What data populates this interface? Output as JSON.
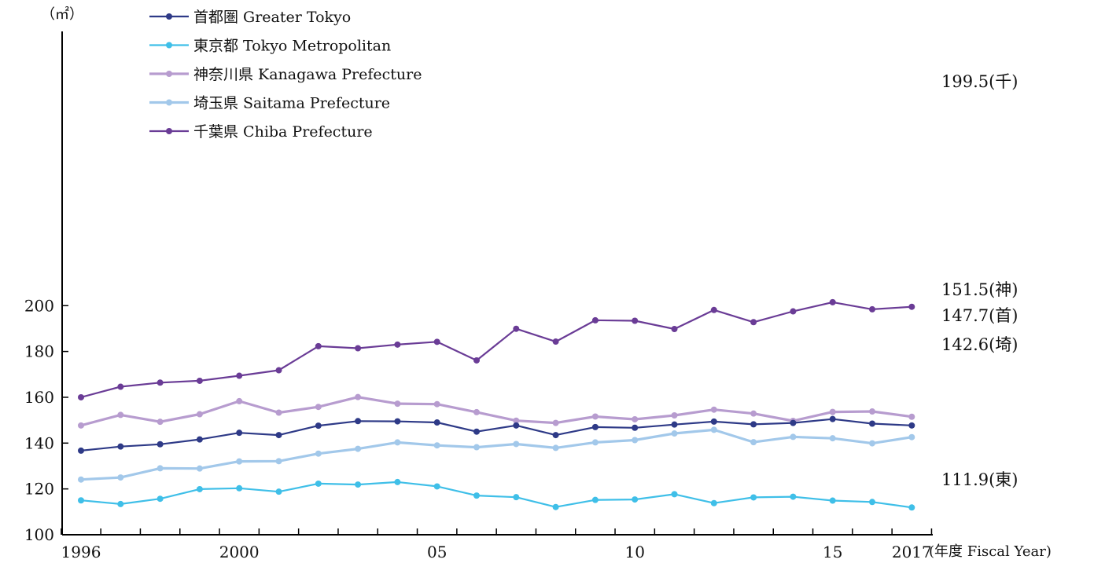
{
  "chart_data": {
    "type": "line",
    "y_unit": "（㎡）",
    "x_unit": "(年度 Fiscal Year)",
    "ylim": [
      100,
      210
    ],
    "yticks": [
      100,
      120,
      140,
      160,
      180,
      200
    ],
    "x": [
      1996,
      1997,
      1998,
      1999,
      2000,
      2001,
      2002,
      2003,
      2004,
      2005,
      2006,
      2007,
      2008,
      2009,
      2010,
      2011,
      2012,
      2013,
      2014,
      2015,
      2016,
      2017
    ],
    "xtick_labels": [
      {
        "year": 1996,
        "label": "1996"
      },
      {
        "year": 2000,
        "label": "2000"
      },
      {
        "year": 2005,
        "label": "05"
      },
      {
        "year": 2010,
        "label": "10"
      },
      {
        "year": 2015,
        "label": "15"
      },
      {
        "year": 2017,
        "label": "2017"
      }
    ],
    "legend_position": "top-left",
    "grid": false,
    "series": [
      {
        "name": "首都圏 Greater Tokyo",
        "color": "#2e3a87",
        "values": [
          136.7,
          138.5,
          139.5,
          141.6,
          144.5,
          143.5,
          147.6,
          149.6,
          149.5,
          149.0,
          145.0,
          147.7,
          143.5,
          147.0,
          146.7,
          148.1,
          149.4,
          148.2,
          148.8,
          150.5,
          148.5,
          147.7
        ],
        "end_label": "147.7(首)"
      },
      {
        "name": "東京都 Tokyo Metropolitan",
        "color": "#3fbfe8",
        "values": [
          115.0,
          113.4,
          115.7,
          119.9,
          120.3,
          118.8,
          122.3,
          121.9,
          123.0,
          121.1,
          117.1,
          116.4,
          112.1,
          115.2,
          115.4,
          117.7,
          113.8,
          116.3,
          116.6,
          114.9,
          114.3,
          111.9
        ],
        "end_label": "111.9(東)"
      },
      {
        "name": "神奈川県 Kanagawa Prefecture",
        "color": "#b79ccf",
        "values": [
          147.7,
          152.3,
          149.3,
          152.6,
          158.3,
          153.3,
          155.8,
          160.1,
          157.2,
          157.0,
          153.5,
          149.8,
          148.8,
          151.6,
          150.4,
          152.1,
          154.6,
          152.9,
          149.7,
          153.6,
          153.8,
          151.5
        ],
        "end_label": "151.5(神)"
      },
      {
        "name": "埼玉県 Saitama Prefecture",
        "color": "#a2c8ea",
        "values": [
          124.1,
          125.0,
          129.0,
          128.9,
          132.0,
          132.1,
          135.4,
          137.5,
          140.3,
          139.0,
          138.2,
          139.6,
          137.9,
          140.3,
          141.3,
          144.2,
          145.8,
          140.4,
          142.7,
          142.1,
          139.9,
          142.6
        ],
        "end_label": "142.6(埼)"
      },
      {
        "name": "千葉県 Chiba Prefecture",
        "color": "#6a3c96",
        "values": [
          160.0,
          164.6,
          166.4,
          167.2,
          169.4,
          171.8,
          182.3,
          181.4,
          183.0,
          184.2,
          176.1,
          189.9,
          184.3,
          193.6,
          193.4,
          189.8,
          198.1,
          192.8,
          197.5,
          201.5,
          198.4,
          199.5
        ],
        "end_label": "199.5(千)"
      }
    ]
  }
}
